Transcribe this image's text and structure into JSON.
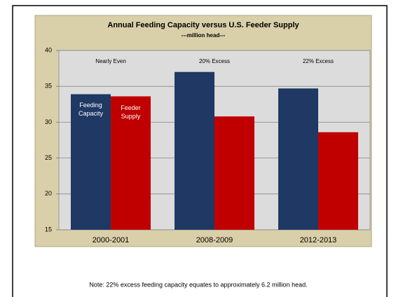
{
  "chart_data": {
    "type": "bar",
    "title": "Annual Feeding Capacity versus U.S. Feeder Supply",
    "subtitle": "---million head---",
    "categories": [
      "2000-2001",
      "2008-2009",
      "2012-2013"
    ],
    "series": [
      {
        "name": "Feeding Capacity",
        "color": "#1f3864",
        "values": [
          33.9,
          37,
          34.7
        ]
      },
      {
        "name": "Feeder Supply",
        "color": "#c00000",
        "values": [
          33.6,
          30.8,
          28.6
        ]
      }
    ],
    "annotations": [
      "Nearly Even",
      "20% Excess",
      "22% Excess"
    ],
    "ylim": [
      15,
      40
    ],
    "yticks": [
      15,
      20,
      25,
      30,
      35,
      40
    ],
    "grid": true,
    "note": "Note:  22% excess feeding capacity equates to approximately 6.2 million head."
  }
}
